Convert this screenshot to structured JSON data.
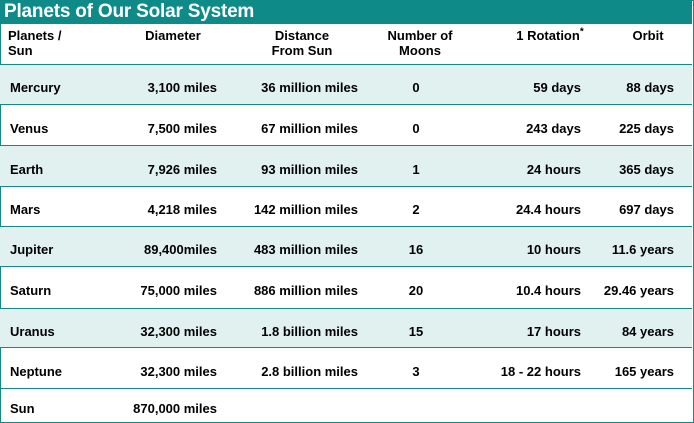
{
  "title": "Planets of Our Solar System",
  "colors": {
    "header": "#0e8b88",
    "stripe": "#e0f1f0",
    "border": "#0f8a87"
  },
  "headers": {
    "planet": [
      "Planets /",
      "Sun"
    ],
    "diameter": "Diameter",
    "distance": [
      "Distance",
      "From Sun"
    ],
    "moons": [
      "Number of",
      "Moons"
    ],
    "rotation": "1 Rotation",
    "rotation_mark": "*",
    "orbit": "Orbit"
  },
  "rows": [
    {
      "name": "Mercury",
      "diameter": "3,100 miles",
      "distance": "36 million miles",
      "moons": "0",
      "rotation": "59 days",
      "orbit": "88 days"
    },
    {
      "name": "Venus",
      "diameter": "7,500 miles",
      "distance": "67 million miles",
      "moons": "0",
      "rotation": "243 days",
      "orbit": "225 days"
    },
    {
      "name": "Earth",
      "diameter": "7,926 miles",
      "distance": "93 million miles",
      "moons": "1",
      "rotation": "24 hours",
      "orbit": "365 days"
    },
    {
      "name": "Mars",
      "diameter": "4,218 miles",
      "distance": "142 million miles",
      "moons": "2",
      "rotation": "24.4 hours",
      "orbit": "697 days"
    },
    {
      "name": "Jupiter",
      "diameter": "89,400miles",
      "distance": "483 million miles",
      "moons": "16",
      "rotation": "10 hours",
      "orbit": "11.6 years"
    },
    {
      "name": "Saturn",
      "diameter": "75,000 miles",
      "distance": "886 million miles",
      "moons": "20",
      "rotation": "10.4 hours",
      "orbit": "29.46 years"
    },
    {
      "name": "Uranus",
      "diameter": "32,300 miles",
      "distance": "1.8 billion miles",
      "moons": "15",
      "rotation": "17 hours",
      "orbit": "84 years"
    },
    {
      "name": "Neptune",
      "diameter": "32,300 miles",
      "distance": "2.8 billion miles",
      "moons": "3",
      "rotation": "18 - 22 hours",
      "orbit": "165 years"
    },
    {
      "name": "Sun",
      "diameter": "870,000 miles",
      "distance": "",
      "moons": "",
      "rotation": "",
      "orbit": ""
    }
  ]
}
